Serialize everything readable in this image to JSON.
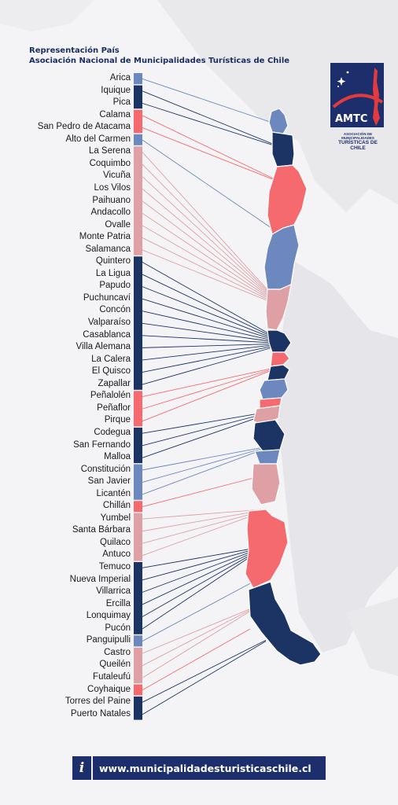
{
  "header": {
    "line1": "Representación País",
    "line2": "Asociación Nacional de Municipalidades Turísticas de Chile"
  },
  "logo": {
    "acronym": "AMTC",
    "subtitle_small": "ASOCIACIÓN DE MUNICIPALIDADES",
    "subtitle_big": "TURÍSTICAS DE CHILE"
  },
  "colors": {
    "navy": "#1b3464",
    "steel": "#6c88bf",
    "coral": "#f56a6e",
    "pink": "#dea0a5"
  },
  "regions": [
    {
      "color": "steel",
      "municipalities": [
        "Arica"
      ]
    },
    {
      "color": "navy",
      "municipalities": [
        "Iquique",
        "Pica"
      ]
    },
    {
      "color": "coral",
      "municipalities": [
        "Calama",
        "San Pedro de Atacama"
      ]
    },
    {
      "color": "steel",
      "municipalities": [
        "Alto del Carmen"
      ]
    },
    {
      "color": "pink",
      "municipalities": [
        "La Serena",
        "Coquimbo",
        "Vicuña",
        "Los Vilos",
        "Paihuano",
        "Andacollo",
        "Ovalle",
        "Monte Patria",
        "Salamanca"
      ]
    },
    {
      "color": "navy",
      "municipalities": [
        "Quintero",
        "La Ligua",
        "Papudo",
        "Puchuncaví",
        "Concón",
        "Valparaíso",
        "Casablanca",
        "Villa Alemana",
        "La Calera",
        "El Quisco",
        "Zapallar"
      ]
    },
    {
      "color": "coral",
      "municipalities": [
        "Peñalolén",
        "Peñaflor",
        "Pirque"
      ]
    },
    {
      "color": "navy",
      "municipalities": [
        "Codegua",
        "San Fernando",
        "Malloa"
      ]
    },
    {
      "color": "steel",
      "municipalities": [
        "Constitución",
        "San Javier",
        "Licantén"
      ]
    },
    {
      "color": "coral",
      "municipalities": [
        "Chillán"
      ]
    },
    {
      "color": "pink",
      "municipalities": [
        "Yumbel",
        "Santa Bárbara",
        "Quilaco",
        "Antuco"
      ]
    },
    {
      "color": "navy",
      "municipalities": [
        "Temuco",
        "Nueva Imperial",
        "Villarrica",
        "Ercilla",
        "Lonquimay",
        "Pucón"
      ]
    },
    {
      "color": "steel",
      "municipalities": [
        "Panguipulli"
      ]
    },
    {
      "color": "pink",
      "municipalities": [
        "Castro",
        "Queilén",
        "Futaleufú"
      ]
    },
    {
      "color": "coral",
      "municipalities": [
        "Coyhaique"
      ]
    },
    {
      "color": "navy",
      "municipalities": [
        "Torres del Paine",
        "Puerto Natales"
      ]
    }
  ],
  "footer": {
    "info_icon": "i",
    "url": "www.municipalidadesturisticaschile.cl"
  }
}
